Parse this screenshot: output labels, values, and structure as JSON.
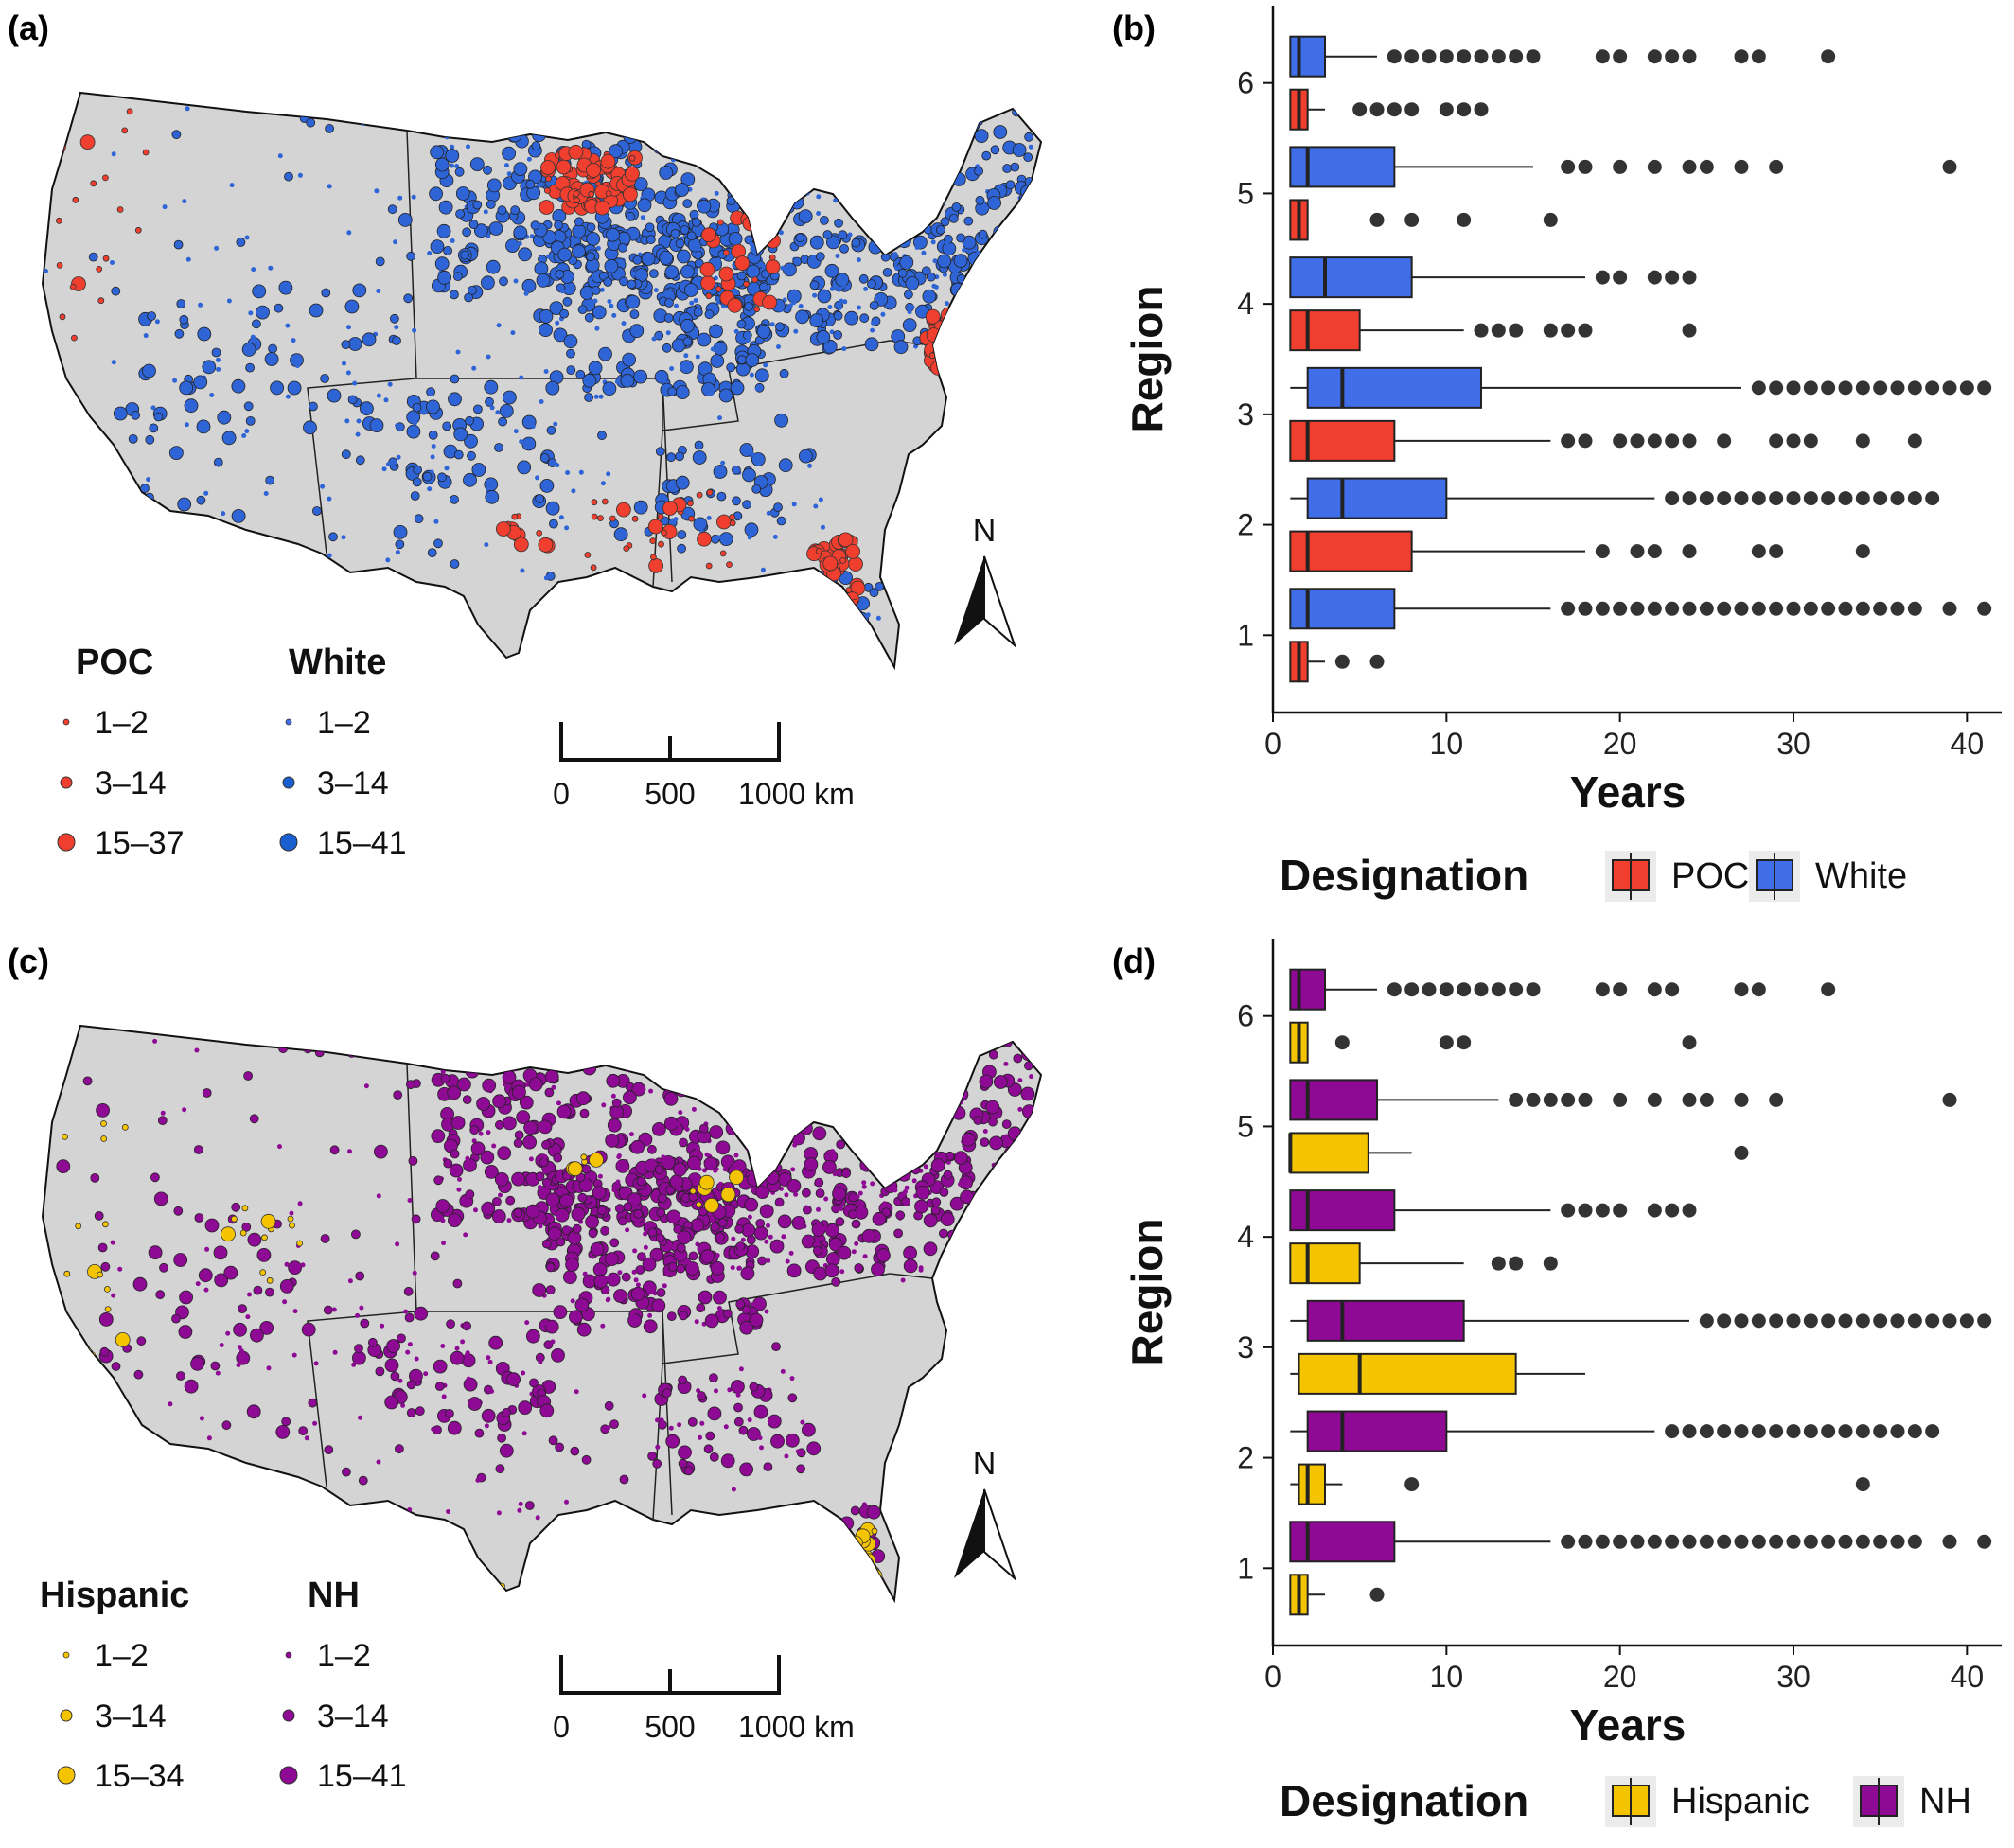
{
  "colors": {
    "poc": "#f03e2f",
    "white": "#3f6ee8",
    "hispanic": "#f5c400",
    "nh": "#8e0a94",
    "outlier": "#333333",
    "land": "#d4d4d4",
    "legend_key_bg": "#ebebeb"
  },
  "panels": {
    "a": {
      "tag": "(a)",
      "legend_groups": [
        {
          "title": "POC",
          "color_key": "poc",
          "items": [
            "1–2",
            "3–14",
            "15–37"
          ]
        },
        {
          "title": "White",
          "color_key": "white",
          "items": [
            "1–2",
            "3–14",
            "15–41"
          ]
        }
      ],
      "scale_bar": {
        "ticks": [
          "0",
          "500",
          "1000 km"
        ]
      },
      "north": "N"
    },
    "c": {
      "tag": "(c)",
      "legend_groups": [
        {
          "title": "Hispanic",
          "color_key": "hispanic",
          "items": [
            "1–2",
            "3–14",
            "15–34"
          ]
        },
        {
          "title": "NH",
          "color_key": "nh",
          "items": [
            "1–2",
            "3–14",
            "15–41"
          ]
        }
      ],
      "scale_bar": {
        "ticks": [
          "0",
          "500",
          "1000 km"
        ]
      },
      "north": "N"
    }
  },
  "chart_data": [
    {
      "panel": "(b)",
      "type": "boxplot",
      "orientation": "horizontal",
      "xlabel": "Years",
      "ylabel": "Region",
      "xlim": [
        0,
        42
      ],
      "xticks": [
        0,
        10,
        20,
        30,
        40
      ],
      "categories": [
        "1",
        "2",
        "3",
        "4",
        "5",
        "6"
      ],
      "legend": {
        "title": "Designation",
        "position": "bottom",
        "entries": [
          "POC",
          "White"
        ]
      },
      "series": [
        {
          "name": "POC",
          "color_key": "poc",
          "boxes": [
            {
              "region": "1",
              "whisker_low": 1,
              "q1": 1,
              "median": 1.5,
              "q3": 2,
              "whisker_high": 3,
              "outliers": [
                4,
                6
              ]
            },
            {
              "region": "2",
              "whisker_low": 1,
              "q1": 1,
              "median": 2,
              "q3": 8,
              "whisker_high": 18,
              "outliers": [
                19,
                21,
                22,
                24,
                28,
                29,
                34
              ]
            },
            {
              "region": "3",
              "whisker_low": 1,
              "q1": 1,
              "median": 2,
              "q3": 7,
              "whisker_high": 16,
              "outliers": [
                17,
                18,
                20,
                21,
                22,
                23,
                24,
                26,
                29,
                30,
                31,
                34,
                37
              ]
            },
            {
              "region": "4",
              "whisker_low": 1,
              "q1": 1,
              "median": 2,
              "q3": 5,
              "whisker_high": 11,
              "outliers": [
                12,
                13,
                14,
                16,
                17,
                18,
                24
              ]
            },
            {
              "region": "5",
              "whisker_low": 1,
              "q1": 1,
              "median": 1.5,
              "q3": 2,
              "whisker_high": 2,
              "outliers": [
                6,
                8,
                11,
                16
              ]
            },
            {
              "region": "6",
              "whisker_low": 1,
              "q1": 1,
              "median": 1.5,
              "q3": 2,
              "whisker_high": 3,
              "outliers": [
                5,
                6,
                7,
                8,
                10,
                11,
                12
              ]
            }
          ]
        },
        {
          "name": "White",
          "color_key": "white",
          "boxes": [
            {
              "region": "1",
              "whisker_low": 1,
              "q1": 1,
              "median": 2,
              "q3": 7,
              "whisker_high": 16,
              "outliers": [
                17,
                18,
                19,
                20,
                21,
                22,
                23,
                24,
                25,
                26,
                27,
                28,
                29,
                30,
                31,
                32,
                33,
                34,
                35,
                36,
                37,
                39,
                41
              ]
            },
            {
              "region": "2",
              "whisker_low": 1,
              "q1": 2,
              "median": 4,
              "q3": 10,
              "whisker_high": 22,
              "outliers": [
                23,
                24,
                25,
                26,
                27,
                28,
                29,
                30,
                31,
                32,
                33,
                34,
                35,
                36,
                37,
                38
              ]
            },
            {
              "region": "3",
              "whisker_low": 1,
              "q1": 2,
              "median": 4,
              "q3": 12,
              "whisker_high": 27,
              "outliers": [
                28,
                29,
                30,
                31,
                32,
                33,
                34,
                35,
                36,
                37,
                38,
                39,
                40,
                41
              ]
            },
            {
              "region": "4",
              "whisker_low": 1,
              "q1": 1,
              "median": 3,
              "q3": 8,
              "whisker_high": 18,
              "outliers": [
                19,
                20,
                22,
                23,
                24
              ]
            },
            {
              "region": "5",
              "whisker_low": 1,
              "q1": 1,
              "median": 2,
              "q3": 7,
              "whisker_high": 15,
              "outliers": [
                17,
                18,
                20,
                22,
                24,
                25,
                27,
                29,
                39
              ]
            },
            {
              "region": "6",
              "whisker_low": 1,
              "q1": 1,
              "median": 1.5,
              "q3": 3,
              "whisker_high": 6,
              "outliers": [
                7,
                8,
                9,
                10,
                11,
                12,
                13,
                14,
                15,
                19,
                20,
                22,
                23,
                24,
                27,
                28,
                32
              ]
            }
          ]
        }
      ]
    },
    {
      "panel": "(d)",
      "type": "boxplot",
      "orientation": "horizontal",
      "xlabel": "Years",
      "ylabel": "Region",
      "xlim": [
        0,
        42
      ],
      "xticks": [
        0,
        10,
        20,
        30,
        40
      ],
      "categories": [
        "1",
        "2",
        "3",
        "4",
        "5",
        "6"
      ],
      "legend": {
        "title": "Designation",
        "position": "bottom",
        "entries": [
          "Hispanic",
          "NH"
        ]
      },
      "series": [
        {
          "name": "Hispanic",
          "color_key": "hispanic",
          "boxes": [
            {
              "region": "1",
              "whisker_low": 1,
              "q1": 1,
              "median": 1.5,
              "q3": 2,
              "whisker_high": 3,
              "outliers": [
                6
              ]
            },
            {
              "region": "2",
              "whisker_low": 1,
              "q1": 1.5,
              "median": 2,
              "q3": 3,
              "whisker_high": 4,
              "outliers": [
                8,
                34
              ]
            },
            {
              "region": "3",
              "whisker_low": 1,
              "q1": 1.5,
              "median": 5,
              "q3": 14,
              "whisker_high": 18,
              "outliers": []
            },
            {
              "region": "4",
              "whisker_low": 1,
              "q1": 1,
              "median": 2,
              "q3": 5,
              "whisker_high": 11,
              "outliers": [
                13,
                14,
                16
              ]
            },
            {
              "region": "5",
              "whisker_low": 1,
              "q1": 1,
              "median": 1,
              "q3": 5.5,
              "whisker_high": 8,
              "outliers": [
                27
              ]
            },
            {
              "region": "6",
              "whisker_low": 1,
              "q1": 1,
              "median": 1.5,
              "q3": 2,
              "whisker_high": 2,
              "outliers": [
                4,
                10,
                11,
                24
              ]
            }
          ]
        },
        {
          "name": "NH",
          "color_key": "nh",
          "boxes": [
            {
              "region": "1",
              "whisker_low": 1,
              "q1": 1,
              "median": 2,
              "q3": 7,
              "whisker_high": 16,
              "outliers": [
                17,
                18,
                19,
                20,
                21,
                22,
                23,
                24,
                25,
                26,
                27,
                28,
                29,
                30,
                31,
                32,
                33,
                34,
                35,
                36,
                37,
                39,
                41
              ]
            },
            {
              "region": "2",
              "whisker_low": 1,
              "q1": 2,
              "median": 4,
              "q3": 10,
              "whisker_high": 22,
              "outliers": [
                23,
                24,
                25,
                26,
                27,
                28,
                29,
                30,
                31,
                32,
                33,
                34,
                35,
                36,
                37,
                38
              ]
            },
            {
              "region": "3",
              "whisker_low": 1,
              "q1": 2,
              "median": 4,
              "q3": 11,
              "whisker_high": 24,
              "outliers": [
                25,
                26,
                27,
                28,
                29,
                30,
                31,
                32,
                33,
                34,
                35,
                36,
                37,
                38,
                39,
                40,
                41
              ]
            },
            {
              "region": "4",
              "whisker_low": 1,
              "q1": 1,
              "median": 2,
              "q3": 7,
              "whisker_high": 16,
              "outliers": [
                17,
                18,
                19,
                20,
                22,
                23,
                24
              ]
            },
            {
              "region": "5",
              "whisker_low": 1,
              "q1": 1,
              "median": 2,
              "q3": 6,
              "whisker_high": 13,
              "outliers": [
                14,
                15,
                16,
                17,
                18,
                20,
                22,
                24,
                25,
                27,
                29,
                39
              ]
            },
            {
              "region": "6",
              "whisker_low": 1,
              "q1": 1,
              "median": 1.5,
              "q3": 3,
              "whisker_high": 6,
              "outliers": [
                7,
                8,
                9,
                10,
                11,
                12,
                13,
                14,
                15,
                19,
                20,
                22,
                23,
                27,
                28,
                32
              ]
            }
          ]
        }
      ]
    }
  ]
}
